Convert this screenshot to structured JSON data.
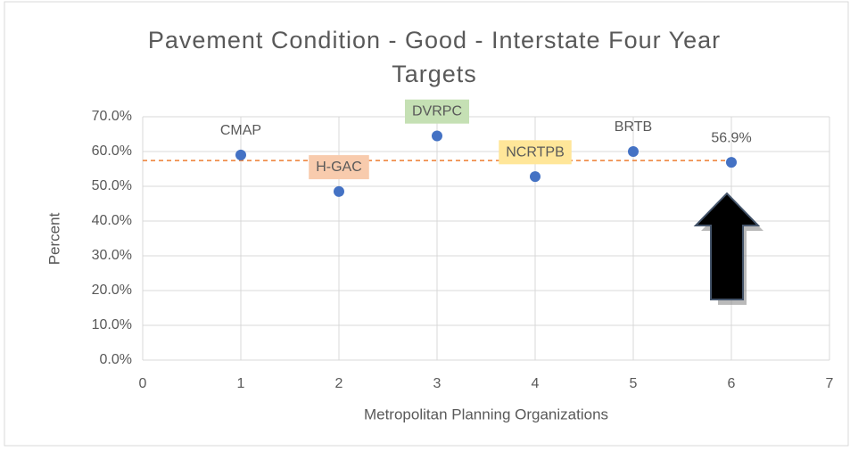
{
  "chart_data": {
    "type": "scatter",
    "title": "Pavement Condition - Good - Interstate Four Year Targets",
    "x_label": "Metropolitan Planning Organizations",
    "y_label": "Percent",
    "series": [
      {
        "color": "#4472c4",
        "x": [
          1,
          2,
          3,
          4,
          5,
          6
        ],
        "values": [
          59,
          48.5,
          64.5,
          52.8,
          60,
          56.9
        ],
        "labels": [
          "CMAP",
          "H-GAC",
          "DVRPC",
          "NCRTPB",
          "BRTB",
          null
        ],
        "label_backgrounds": [
          null,
          "#f8cbad",
          "#c5e0b4",
          "#ffe699",
          null,
          null
        ],
        "value_labels": [
          null,
          null,
          null,
          null,
          null,
          "56.9%"
        ]
      }
    ],
    "reference_line": {
      "value": 57.4,
      "color": "#ed7d31",
      "dashed": true
    },
    "xlim": [
      0,
      7
    ],
    "xticks": [
      0,
      1,
      2,
      3,
      4,
      5,
      6,
      7
    ],
    "ylim": [
      0,
      70
    ],
    "yticks": [
      {
        "value": 0,
        "label": "0.0%"
      },
      {
        "value": 10,
        "label": "10.0%"
      },
      {
        "value": 20,
        "label": "20.0%"
      },
      {
        "value": 30,
        "label": "30.0%"
      },
      {
        "value": 40,
        "label": "40.0%"
      },
      {
        "value": 50,
        "label": "50.0%"
      },
      {
        "value": 60,
        "label": "60.0%"
      },
      {
        "value": 70,
        "label": "70.0%"
      }
    ],
    "grid": true
  }
}
